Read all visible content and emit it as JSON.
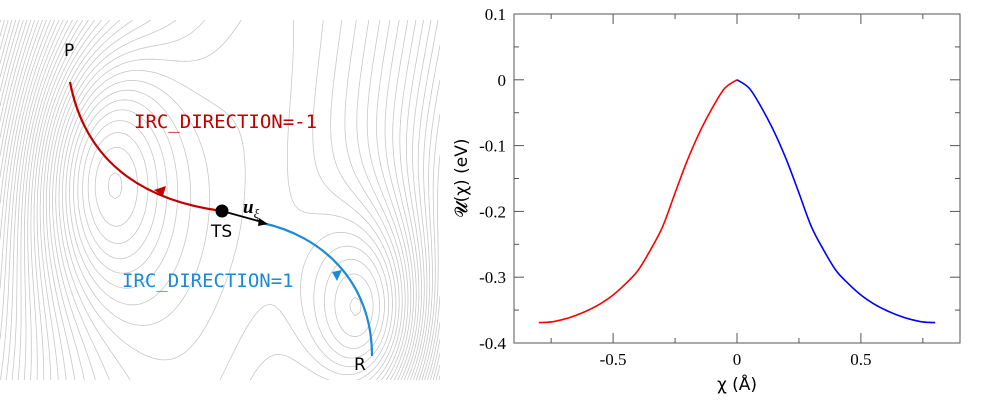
{
  "diagram": {
    "labels": {
      "product": "P",
      "reactant": "R",
      "transition_state": "TS",
      "direction_vector": "u",
      "direction_vector_sub": "ξ"
    },
    "irc_negative": {
      "text": "IRC_DIRECTION=-1",
      "color": "#c00000"
    },
    "irc_positive": {
      "text": "IRC_DIRECTION=1",
      "color": "#1a8bd6"
    },
    "contour_color": "#c8c8c8"
  },
  "chart_data": {
    "type": "line",
    "xlabel": "χ (Å)",
    "ylabel": "𝓤(χ) (eV)",
    "xlim": [
      -0.9,
      0.9
    ],
    "ylim": [
      -0.4,
      0.1
    ],
    "xticks": [
      "-0.5",
      "0",
      "0.5"
    ],
    "yticks": [
      "0.1",
      "0",
      "-0.1",
      "-0.2",
      "-0.3",
      "-0.4"
    ],
    "grid": false,
    "series": [
      {
        "color": "#ff0000",
        "x": [
          -0.8,
          -0.75,
          -0.7,
          -0.65,
          -0.6,
          -0.55,
          -0.5,
          -0.45,
          -0.4,
          -0.35,
          -0.3,
          -0.25,
          -0.2,
          -0.15,
          -0.1,
          -0.05,
          0
        ],
        "y": [
          -0.369,
          -0.368,
          -0.364,
          -0.358,
          -0.35,
          -0.34,
          -0.327,
          -0.31,
          -0.29,
          -0.259,
          -0.223,
          -0.172,
          -0.122,
          -0.079,
          -0.043,
          -0.013,
          0
        ]
      },
      {
        "color": "#0000ff",
        "x": [
          0,
          0.05,
          0.1,
          0.15,
          0.2,
          0.25,
          0.3,
          0.35,
          0.4,
          0.45,
          0.5,
          0.55,
          0.6,
          0.65,
          0.7,
          0.75,
          0.8
        ],
        "y": [
          0,
          -0.013,
          -0.043,
          -0.079,
          -0.122,
          -0.172,
          -0.223,
          -0.259,
          -0.29,
          -0.31,
          -0.327,
          -0.34,
          -0.35,
          -0.358,
          -0.364,
          -0.368,
          -0.369
        ]
      }
    ]
  }
}
